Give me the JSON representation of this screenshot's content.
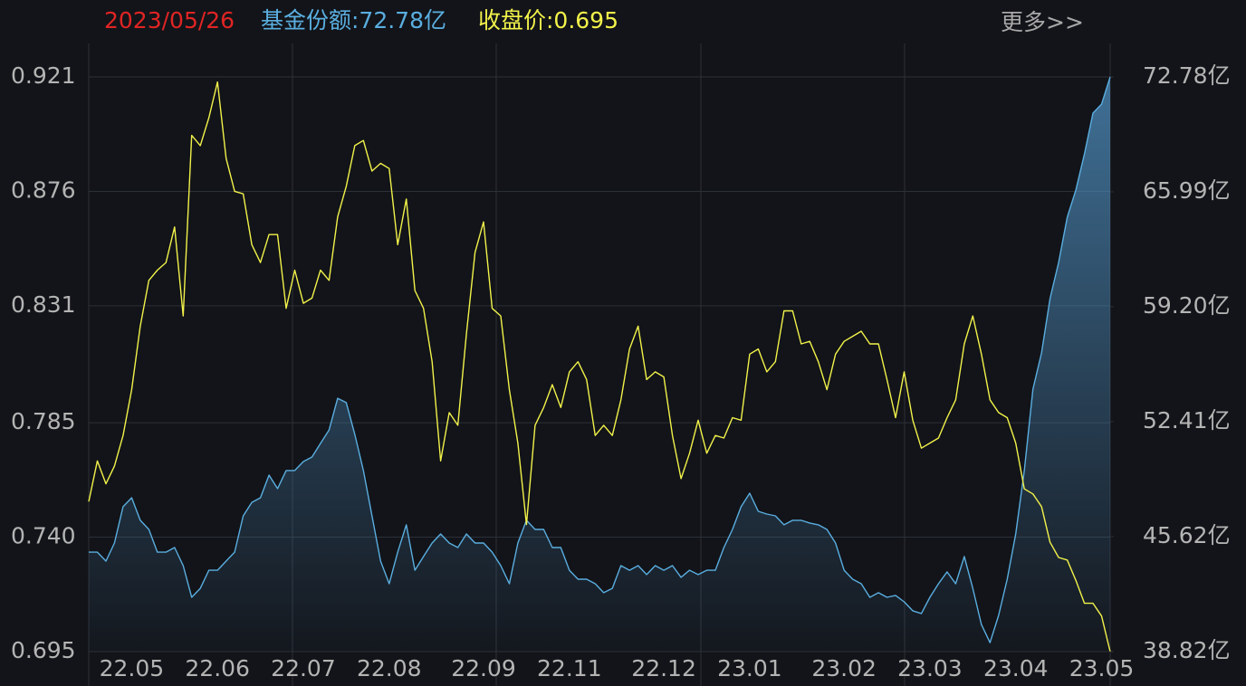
{
  "chart_data": {
    "type": "line",
    "header": [
      "2023/05/26",
      "基金份额:72.78亿",
      "收盘价:0.695"
    ],
    "more": "更多>>",
    "categories": [
      null,
      null,
      null,
      null,
      null,
      "22.05",
      null,
      null,
      null,
      null,
      null,
      null,
      null,
      null,
      null,
      "22.06",
      null,
      null,
      null,
      null,
      null,
      null,
      null,
      null,
      null,
      "22.07",
      null,
      null,
      null,
      null,
      null,
      null,
      null,
      null,
      null,
      "22.08",
      null,
      null,
      null,
      null,
      null,
      null,
      null,
      null,
      null,
      null,
      "22.09",
      null,
      null,
      null,
      null,
      null,
      null,
      null,
      null,
      null,
      "22.11",
      null,
      null,
      null,
      null,
      null,
      null,
      null,
      null,
      null,
      null,
      "22.12",
      null,
      null,
      null,
      null,
      null,
      null,
      null,
      null,
      null,
      "23.01",
      null,
      null,
      null,
      null,
      null,
      null,
      null,
      null,
      null,
      null,
      "23.02",
      null,
      null,
      null,
      null,
      null,
      null,
      null,
      null,
      null,
      "23.03",
      null,
      null,
      null,
      null,
      null,
      null,
      null,
      null,
      null,
      "23.04",
      null,
      null,
      null,
      null,
      null,
      null,
      null,
      null,
      null,
      "23.05",
      null
    ],
    "series": [
      {
        "name": "收盘价",
        "color": "#f2f24a",
        "axis": "y",
        "values": [
          0.754,
          0.77,
          0.761,
          0.768,
          0.78,
          0.798,
          0.823,
          0.841,
          0.845,
          0.848,
          0.862,
          0.827,
          0.898,
          0.894,
          0.905,
          0.919,
          0.889,
          0.876,
          0.875,
          0.855,
          0.848,
          0.859,
          0.859,
          0.83,
          0.845,
          0.832,
          0.834,
          0.845,
          0.841,
          0.866,
          0.878,
          0.894,
          0.896,
          0.884,
          0.887,
          0.885,
          0.855,
          0.873,
          0.837,
          0.83,
          0.809,
          0.77,
          0.789,
          0.784,
          0.82,
          0.852,
          0.864,
          0.83,
          0.827,
          0.798,
          0.777,
          0.745,
          0.784,
          0.791,
          0.8,
          0.791,
          0.805,
          0.809,
          0.802,
          0.78,
          0.784,
          0.78,
          0.794,
          0.814,
          0.823,
          0.802,
          0.805,
          0.803,
          0.78,
          0.763,
          0.773,
          0.786,
          0.773,
          0.78,
          0.779,
          0.787,
          0.786,
          0.812,
          0.814,
          0.805,
          0.809,
          0.829,
          0.829,
          0.816,
          0.817,
          0.809,
          0.798,
          0.812,
          0.817,
          0.819,
          0.821,
          0.816,
          0.816,
          0.802,
          0.787,
          0.805,
          0.786,
          0.775,
          0.777,
          0.779,
          0.787,
          0.794,
          0.816,
          0.827,
          0.812,
          0.794,
          0.789,
          0.787,
          0.777,
          0.759,
          0.757,
          0.752,
          0.738,
          0.732,
          0.731,
          0.723,
          0.714,
          0.714,
          0.709,
          0.695
        ]
      },
      {
        "name": "基金份额",
        "color": "#5aaee0",
        "axis": "y2",
        "values": [
          44.7,
          44.7,
          44.17,
          45.24,
          47.38,
          47.91,
          46.58,
          46.04,
          44.7,
          44.7,
          44.97,
          43.9,
          42.03,
          42.56,
          43.63,
          43.63,
          44.17,
          44.7,
          46.84,
          47.64,
          47.91,
          49.25,
          48.45,
          49.52,
          49.52,
          50.05,
          50.32,
          51.12,
          51.92,
          53.79,
          53.53,
          51.66,
          49.52,
          46.84,
          44.17,
          42.83,
          44.7,
          46.31,
          43.63,
          44.44,
          45.24,
          45.77,
          45.24,
          44.97,
          45.77,
          45.24,
          45.24,
          44.7,
          43.9,
          42.83,
          45.24,
          46.58,
          46.04,
          46.04,
          44.97,
          44.97,
          43.63,
          43.1,
          43.1,
          42.83,
          42.3,
          42.56,
          43.9,
          43.63,
          43.9,
          43.37,
          43.9,
          43.63,
          43.9,
          43.21,
          43.63,
          43.37,
          43.63,
          43.63,
          44.97,
          46.04,
          47.38,
          48.18,
          47.11,
          46.95,
          46.84,
          46.31,
          46.58,
          46.58,
          46.42,
          46.31,
          46.04,
          45.24,
          43.63,
          43.1,
          42.83,
          42.03,
          42.3,
          42.03,
          42.14,
          41.76,
          41.23,
          41.07,
          42.03,
          42.83,
          43.53,
          42.83,
          44.44,
          42.56,
          40.42,
          39.35,
          40.96,
          43.1,
          45.77,
          49.52,
          54.33,
          56.47,
          59.68,
          61.82,
          64.49,
          66.1,
          68.23,
          70.64,
          71.17,
          72.78
        ]
      }
    ],
    "ylim": [
      0.695,
      0.921
    ],
    "yticks": [
      0.921,
      0.876,
      0.831,
      0.785,
      {
        "value": 0.74,
        "label": "0.740"
      },
      0.695
    ],
    "y2lim": [
      38.82,
      72.78
    ],
    "y2ticks": [
      {
        "value": 72.78,
        "label": "72.78亿"
      },
      {
        "value": 65.99,
        "label": "65.99亿"
      },
      {
        "value": 59.2,
        "label": "59.20亿"
      },
      {
        "value": 52.41,
        "label": "52.41亿"
      },
      {
        "value": 45.62,
        "label": "45.62亿"
      },
      {
        "value": 38.82,
        "label": "38.82亿"
      }
    ],
    "grid": true
  }
}
